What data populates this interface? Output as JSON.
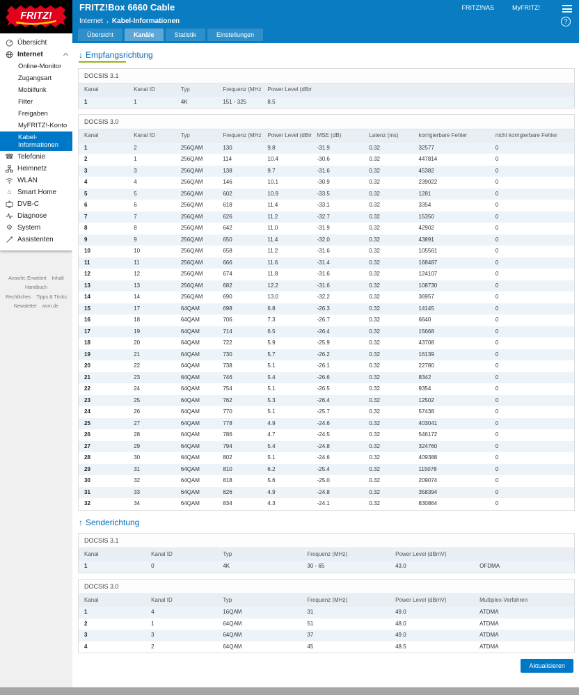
{
  "header": {
    "title": "FRITZ!Box 6660 Cable",
    "links": [
      {
        "label": "FRITZ!NAS"
      },
      {
        "label": "MyFRITZ!"
      }
    ],
    "breadcrumb": [
      "Internet",
      "Kabel-Informationen"
    ],
    "breadcrumb_separator": "›",
    "help_label": "?",
    "tabs": [
      {
        "label": "Übersicht",
        "active": false
      },
      {
        "label": "Kanäle",
        "active": true
      },
      {
        "label": "Statistik",
        "active": false
      },
      {
        "label": "Einstellungen",
        "active": false
      }
    ]
  },
  "logo": {
    "brand": "FRITZ!"
  },
  "sidebar": {
    "items": [
      {
        "label": "Übersicht",
        "icon": "overview"
      },
      {
        "label": "Internet",
        "icon": "globe",
        "expanded": true,
        "children": [
          "Online-Monitor",
          "Zugangsart",
          "Mobilfunk",
          "Filter",
          "Freigaben",
          "MyFRITZ!-Konto",
          "Kabel-Informationen"
        ],
        "active_child": "Kabel-Informationen"
      },
      {
        "label": "Telefonie",
        "icon": "phone"
      },
      {
        "label": "Heimnetz",
        "icon": "home-network"
      },
      {
        "label": "WLAN",
        "icon": "wifi"
      },
      {
        "label": "Smart Home",
        "icon": "smart-home"
      },
      {
        "label": "DVB-C",
        "icon": "tv"
      },
      {
        "label": "Diagnose",
        "icon": "diagnose"
      },
      {
        "label": "System",
        "icon": "gear"
      },
      {
        "label": "Assistenten",
        "icon": "wizard"
      }
    ],
    "footer_links": [
      "Ansicht: Erweitert",
      "Inhalt",
      "Handbuch",
      "Rechtliches",
      "Tipps & Tricks",
      "Newsletter",
      "avm.de"
    ]
  },
  "downstream": {
    "arrow": "↓",
    "heading": "Empfangsrichtung",
    "docsis31": {
      "title": "DOCSIS 3.1",
      "columns": [
        "Kanal",
        "Kanal ID",
        "Typ",
        "Frequenz (MHz)",
        "Power Level (dBmV)",
        ""
      ],
      "rows": [
        [
          "1",
          "1",
          "4K",
          "151 - 325",
          "8.5",
          ""
        ]
      ]
    },
    "docsis30": {
      "title": "DOCSIS 3.0",
      "columns": [
        "Kanal",
        "Kanal ID",
        "Typ",
        "Frequenz (MHz)",
        "Power Level (dBmV)",
        "MSE (dB)",
        "Latenz (ms)",
        "korrigierbare Fehler",
        "nicht korrigierbare Fehler"
      ],
      "rows": [
        [
          "1",
          "2",
          "256QAM",
          "130",
          "9.8",
          "-31.9",
          "0.32",
          "32577",
          "0"
        ],
        [
          "2",
          "1",
          "256QAM",
          "114",
          "10.4",
          "-30.6",
          "0.32",
          "447814",
          "0"
        ],
        [
          "3",
          "3",
          "256QAM",
          "138",
          "9.7",
          "-31.6",
          "0.32",
          "45382",
          "0"
        ],
        [
          "4",
          "4",
          "256QAM",
          "146",
          "10.1",
          "-30.9",
          "0.32",
          "239022",
          "0"
        ],
        [
          "5",
          "5",
          "256QAM",
          "602",
          "10.9",
          "-33.5",
          "0.32",
          "1281",
          "0"
        ],
        [
          "6",
          "6",
          "256QAM",
          "618",
          "11.4",
          "-33.1",
          "0.32",
          "3354",
          "0"
        ],
        [
          "7",
          "7",
          "256QAM",
          "626",
          "11.2",
          "-32.7",
          "0.32",
          "15350",
          "0"
        ],
        [
          "8",
          "8",
          "256QAM",
          "642",
          "11.0",
          "-31.9",
          "0.32",
          "42902",
          "0"
        ],
        [
          "9",
          "9",
          "256QAM",
          "650",
          "11.4",
          "-32.0",
          "0.32",
          "43891",
          "0"
        ],
        [
          "10",
          "10",
          "256QAM",
          "658",
          "11.2",
          "-31.6",
          "0.32",
          "105561",
          "0"
        ],
        [
          "11",
          "11",
          "256QAM",
          "666",
          "11.6",
          "-31.4",
          "0.32",
          "168487",
          "0"
        ],
        [
          "12",
          "12",
          "256QAM",
          "674",
          "11.8",
          "-31.6",
          "0.32",
          "124107",
          "0"
        ],
        [
          "13",
          "13",
          "256QAM",
          "682",
          "12.2",
          "-31.6",
          "0.32",
          "108730",
          "0"
        ],
        [
          "14",
          "14",
          "256QAM",
          "690",
          "13.0",
          "-32.2",
          "0.32",
          "36957",
          "0"
        ],
        [
          "15",
          "17",
          "64QAM",
          "698",
          "6.8",
          "-26.3",
          "0.32",
          "14145",
          "0"
        ],
        [
          "16",
          "18",
          "64QAM",
          "706",
          "7.3",
          "-26.7",
          "0.32",
          "6640",
          "0"
        ],
        [
          "17",
          "19",
          "64QAM",
          "714",
          "6.5",
          "-26.4",
          "0.32",
          "15668",
          "0"
        ],
        [
          "18",
          "20",
          "64QAM",
          "722",
          "5.9",
          "-25.9",
          "0.32",
          "43708",
          "0"
        ],
        [
          "19",
          "21",
          "64QAM",
          "730",
          "5.7",
          "-26.2",
          "0.32",
          "16139",
          "0"
        ],
        [
          "20",
          "22",
          "64QAM",
          "738",
          "5.1",
          "-26.1",
          "0.32",
          "22780",
          "0"
        ],
        [
          "21",
          "23",
          "64QAM",
          "746",
          "5.4",
          "-26.6",
          "0.32",
          "8342",
          "0"
        ],
        [
          "22",
          "24",
          "64QAM",
          "754",
          "5.1",
          "-26.5",
          "0.32",
          "9354",
          "0"
        ],
        [
          "23",
          "25",
          "64QAM",
          "762",
          "5.3",
          "-26.4",
          "0.32",
          "12502",
          "0"
        ],
        [
          "24",
          "26",
          "64QAM",
          "770",
          "5.1",
          "-25.7",
          "0.32",
          "57438",
          "0"
        ],
        [
          "25",
          "27",
          "64QAM",
          "778",
          "4.9",
          "-24.6",
          "0.32",
          "403041",
          "0"
        ],
        [
          "26",
          "28",
          "64QAM",
          "786",
          "4.7",
          "-24.5",
          "0.32",
          "546172",
          "0"
        ],
        [
          "27",
          "29",
          "64QAM",
          "794",
          "5.4",
          "-24.8",
          "0.32",
          "324760",
          "0"
        ],
        [
          "28",
          "30",
          "64QAM",
          "802",
          "5.1",
          "-24.6",
          "0.32",
          "409388",
          "0"
        ],
        [
          "29",
          "31",
          "64QAM",
          "810",
          "6.2",
          "-25.4",
          "0.32",
          "115078",
          "0"
        ],
        [
          "30",
          "32",
          "64QAM",
          "818",
          "5.6",
          "-25.0",
          "0.32",
          "209074",
          "0"
        ],
        [
          "31",
          "33",
          "64QAM",
          "826",
          "4.9",
          "-24.8",
          "0.32",
          "358394",
          "0"
        ],
        [
          "32",
          "34",
          "64QAM",
          "834",
          "4.3",
          "-24.1",
          "0.32",
          "830864",
          "0"
        ]
      ]
    }
  },
  "upstream": {
    "arrow": "↑",
    "heading": "Senderichtung",
    "docsis31": {
      "title": "DOCSIS 3.1",
      "columns": [
        "Kanal",
        "Kanal ID",
        "Typ",
        "Frequenz (MHz)",
        "Power Level (dBmV)",
        ""
      ],
      "rows": [
        [
          "1",
          "0",
          "4K",
          "30 - 65",
          "43.0",
          "OFDMA"
        ]
      ]
    },
    "docsis30": {
      "title": "DOCSIS 3.0",
      "columns": [
        "Kanal",
        "Kanal ID",
        "Typ",
        "Frequenz (MHz)",
        "Power Level (dBmV)",
        "Multiplex-Verfahren"
      ],
      "rows": [
        [
          "1",
          "4",
          "16QAM",
          "31",
          "49.0",
          "ATDMA"
        ],
        [
          "2",
          "1",
          "64QAM",
          "51",
          "48.0",
          "ATDMA"
        ],
        [
          "3",
          "3",
          "64QAM",
          "37",
          "49.0",
          "ATDMA"
        ],
        [
          "4",
          "2",
          "64QAM",
          "45",
          "48.5",
          "ATDMA"
        ]
      ]
    }
  },
  "footer": {
    "refresh_label": "Aktualisieren"
  },
  "colors": {
    "header_blue": "#0a7cc1",
    "accent_blue": "#0078c8",
    "heading_blue": "#0069b4",
    "active_green": "#93b512",
    "logo_red": "#e2001a",
    "logo_yellow": "#ffcc00",
    "stripe_blue": "#ecf4fa"
  }
}
